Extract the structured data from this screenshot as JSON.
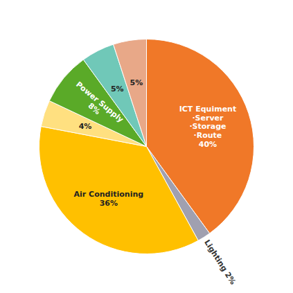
{
  "chart_data": {
    "type": "pie",
    "categories": [
      "ICT Equiment\n·Server\n·Storage\n·Route\n40%",
      "Lighting 2%",
      "Air Conditioning\n36%",
      "4%",
      "Power Supply\n8%",
      "5%",
      "5%"
    ],
    "values": [
      40,
      2,
      36,
      4,
      8,
      5,
      5
    ],
    "colors": [
      "#F07828",
      "#A0A0B0",
      "#FFC000",
      "#FFE080",
      "#5AAA28",
      "#70C8B8",
      "#E8A888"
    ]
  }
}
